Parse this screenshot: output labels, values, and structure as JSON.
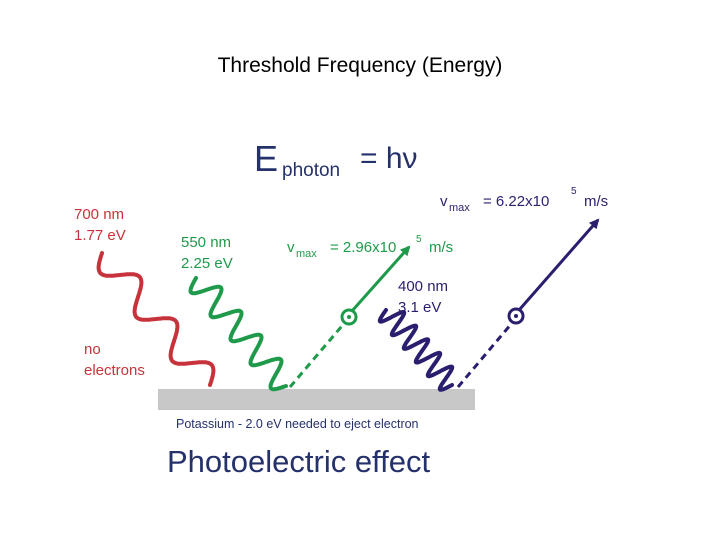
{
  "slide_title": "Threshold Frequency (Energy)",
  "equation": {
    "E": "E",
    "sub": "photon",
    "rhs": "= hν"
  },
  "beams": {
    "red": {
      "wavelength": "700 nm",
      "energy": "1.77 eV",
      "result_line1": "no",
      "result_line2": "electrons",
      "color": "#c8323a"
    },
    "green": {
      "wavelength": "550 nm",
      "energy": "2.25 eV",
      "vmax_v": "v",
      "vmax_sub": "max",
      "vmax_val": "= 2.96x10",
      "vmax_exp": "5",
      "vmax_unit": "m/s",
      "color": "#1f9a4a"
    },
    "blue": {
      "wavelength": "400 nm",
      "energy": "3.1 eV",
      "vmax_v": "v",
      "vmax_sub": "max",
      "vmax_val": "= 6.22x10",
      "vmax_exp": "5",
      "vmax_unit": "m/s",
      "color": "#2a1f6e"
    }
  },
  "metal": {
    "label": "Potassium - 2.0 eV needed to eject electron",
    "color": "#c8c8c8"
  },
  "caption": "Photoelectric effect",
  "text_color": "#25316b"
}
